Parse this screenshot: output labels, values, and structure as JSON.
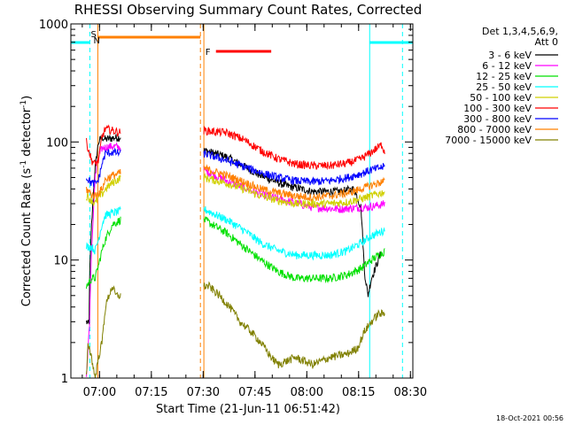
{
  "chart_data": {
    "type": "line",
    "title": "RHESSI Observing Summary Count Rates, Corrected",
    "xlabel": "Start Time (21-Jun-11 06:51:42)",
    "ylabel_main": "Corrected Count Rate (s",
    "ylabel_sup1": "-1",
    "ylabel_mid": " detector",
    "ylabel_sup2": "-1",
    "ylabel_end": ")",
    "yscale": "log",
    "ylim": [
      1,
      1000
    ],
    "xlim_minutes_after_start": [
      0,
      99
    ],
    "x_ticks": [
      {
        "label": "07:00",
        "min": 8.3
      },
      {
        "label": "07:15",
        "min": 23.3
      },
      {
        "label": "07:30",
        "min": 38.3
      },
      {
        "label": "07:45",
        "min": 53.3
      },
      {
        "label": "08:00",
        "min": 68.3
      },
      {
        "label": "08:15",
        "min": 83.3
      },
      {
        "label": "08:30",
        "min": 98.3
      }
    ],
    "y_ticks": [
      {
        "label": "1",
        "value": 1
      },
      {
        "label": "10",
        "value": 10
      },
      {
        "label": "100",
        "value": 100
      },
      {
        "label": "1000",
        "value": 1000
      }
    ],
    "legend_header": [
      "Det 1,3,4,5,6,9,",
      "Att 0"
    ],
    "legend_position": "top-right",
    "annotations": {
      "saa_marker": "S",
      "night_marker": "N",
      "flare_marker": "F",
      "saa_color": "#ff8000",
      "night_color": "#00ffff",
      "flare_color": "#ff0000"
    },
    "events_minutes": {
      "night_bars": [
        [
          0,
          5.5
        ],
        [
          86.5,
          99
        ]
      ],
      "night_dashed": [
        5.5,
        96
      ],
      "night_solid": 86.5,
      "saa_bar": [
        7.8,
        37.5
      ],
      "saa_dashed": 37.5,
      "saa_solid": [
        7.8,
        38.5
      ],
      "flare_bar": [
        42,
        58
      ]
    },
    "segments_minutes": [
      [
        4.5,
        14.5
      ],
      [
        38.5,
        91
      ]
    ],
    "series": [
      {
        "name": "3 - 6 keV",
        "color": "#000000",
        "values": [
          [
            4.5,
            3
          ],
          [
            5.3,
            2.8
          ],
          [
            5.4,
            7
          ],
          [
            6,
            20
          ],
          [
            7,
            60
          ],
          [
            8,
            100
          ],
          [
            9,
            110
          ],
          [
            10,
            105
          ],
          [
            12,
            108
          ],
          [
            14.5,
            110
          ],
          [
            38.5,
            85
          ],
          [
            45,
            75
          ],
          [
            55,
            52
          ],
          [
            62,
            43
          ],
          [
            70,
            38
          ],
          [
            78,
            38
          ],
          [
            82,
            40
          ],
          [
            84,
            28
          ],
          [
            85,
            8
          ],
          [
            86,
            5
          ],
          [
            87,
            7
          ],
          [
            89,
            10
          ],
          [
            90,
            12
          ]
        ]
      },
      {
        "name": "6 - 12 keV",
        "color": "#ff00ff",
        "values": [
          [
            4.5,
            1
          ],
          [
            5.4,
            3
          ],
          [
            6,
            12
          ],
          [
            7,
            50
          ],
          [
            8,
            75
          ],
          [
            9,
            88
          ],
          [
            10,
            90
          ],
          [
            12,
            92
          ],
          [
            14.5,
            90
          ],
          [
            38.5,
            58
          ],
          [
            45,
            47
          ],
          [
            55,
            36
          ],
          [
            62,
            32
          ],
          [
            70,
            28
          ],
          [
            78,
            27
          ],
          [
            84,
            28
          ],
          [
            86,
            28
          ],
          [
            91,
            30
          ]
        ]
      },
      {
        "name": "12 - 25 keV",
        "color": "#00e000",
        "values": [
          [
            4.5,
            6
          ],
          [
            6,
            7
          ],
          [
            7,
            7
          ],
          [
            8,
            9
          ],
          [
            9,
            12
          ],
          [
            10,
            15
          ],
          [
            12,
            20
          ],
          [
            14.5,
            22
          ],
          [
            38.5,
            22
          ],
          [
            45,
            17
          ],
          [
            50,
            13
          ],
          [
            55,
            10
          ],
          [
            60,
            8
          ],
          [
            65,
            7
          ],
          [
            70,
            7
          ],
          [
            75,
            7
          ],
          [
            80,
            7.5
          ],
          [
            84,
            8.5
          ],
          [
            87,
            10
          ],
          [
            91,
            12
          ]
        ]
      },
      {
        "name": "25 - 50 keV",
        "color": "#00ffff",
        "values": [
          [
            4.5,
            13
          ],
          [
            6,
            13
          ],
          [
            7,
            12
          ],
          [
            8,
            15
          ],
          [
            9,
            20
          ],
          [
            10,
            24
          ],
          [
            12,
            25
          ],
          [
            14.5,
            26
          ],
          [
            38.5,
            27
          ],
          [
            45,
            22
          ],
          [
            50,
            18
          ],
          [
            55,
            14
          ],
          [
            60,
            12
          ],
          [
            65,
            11
          ],
          [
            70,
            11
          ],
          [
            75,
            11
          ],
          [
            80,
            12
          ],
          [
            84,
            14
          ],
          [
            87,
            16
          ],
          [
            91,
            18
          ]
        ]
      },
      {
        "name": "50 - 100 keV",
        "color": "#d0d000",
        "values": [
          [
            4.5,
            35
          ],
          [
            6,
            32
          ],
          [
            7,
            30
          ],
          [
            8,
            34
          ],
          [
            9,
            36
          ],
          [
            10,
            40
          ],
          [
            12,
            45
          ],
          [
            14.5,
            50
          ],
          [
            38.5,
            50
          ],
          [
            45,
            45
          ],
          [
            50,
            40
          ],
          [
            55,
            35
          ],
          [
            60,
            32
          ],
          [
            65,
            30
          ],
          [
            70,
            30
          ],
          [
            75,
            30
          ],
          [
            80,
            31
          ],
          [
            84,
            33
          ],
          [
            87,
            35
          ],
          [
            91,
            38
          ]
        ]
      },
      {
        "name": "100 - 300 keV",
        "color": "#ff0000",
        "values": [
          [
            4.5,
            100
          ],
          [
            6,
            70
          ],
          [
            7,
            65
          ],
          [
            8,
            70
          ],
          [
            9,
            110
          ],
          [
            10,
            130
          ],
          [
            12,
            125
          ],
          [
            14.5,
            120
          ],
          [
            38.5,
            125
          ],
          [
            45,
            120
          ],
          [
            50,
            105
          ],
          [
            55,
            85
          ],
          [
            60,
            72
          ],
          [
            65,
            65
          ],
          [
            70,
            63
          ],
          [
            75,
            63
          ],
          [
            80,
            66
          ],
          [
            84,
            72
          ],
          [
            87,
            82
          ],
          [
            90,
            95
          ],
          [
            91,
            80
          ]
        ]
      },
      {
        "name": "300 - 800 keV",
        "color": "#0000ff",
        "values": [
          [
            4.5,
            50
          ],
          [
            6,
            45
          ],
          [
            7,
            44
          ],
          [
            8,
            48
          ],
          [
            9,
            65
          ],
          [
            10,
            80
          ],
          [
            12,
            82
          ],
          [
            14.5,
            80
          ],
          [
            38.5,
            80
          ],
          [
            45,
            70
          ],
          [
            50,
            62
          ],
          [
            55,
            55
          ],
          [
            60,
            50
          ],
          [
            65,
            47
          ],
          [
            70,
            46
          ],
          [
            75,
            47
          ],
          [
            80,
            50
          ],
          [
            84,
            54
          ],
          [
            87,
            58
          ],
          [
            91,
            62
          ]
        ]
      },
      {
        "name": "800 - 7000 keV",
        "color": "#ff8000",
        "values": [
          [
            4.5,
            40
          ],
          [
            6,
            36
          ],
          [
            7,
            35
          ],
          [
            8,
            37
          ],
          [
            9,
            40
          ],
          [
            10,
            48
          ],
          [
            12,
            52
          ],
          [
            14.5,
            55
          ],
          [
            38.5,
            60
          ],
          [
            45,
            52
          ],
          [
            50,
            46
          ],
          [
            55,
            40
          ],
          [
            60,
            37
          ],
          [
            65,
            35
          ],
          [
            70,
            34
          ],
          [
            75,
            35
          ],
          [
            80,
            37
          ],
          [
            84,
            40
          ],
          [
            87,
            43
          ],
          [
            91,
            47
          ]
        ]
      },
      {
        "name": "7000 - 15000 keV",
        "color": "#808000",
        "values": [
          [
            4.5,
            1
          ],
          [
            5,
            2
          ],
          [
            6,
            1.5
          ],
          [
            7,
            1
          ],
          [
            8,
            1.5
          ],
          [
            9,
            2
          ],
          [
            10,
            4
          ],
          [
            11,
            5
          ],
          [
            12,
            6
          ],
          [
            13,
            5
          ],
          [
            14.5,
            5
          ],
          [
            38.5,
            6
          ],
          [
            40,
            6
          ],
          [
            43,
            5
          ],
          [
            46,
            4
          ],
          [
            49,
            3
          ],
          [
            52,
            2.5
          ],
          [
            55,
            2
          ],
          [
            58,
            1.5
          ],
          [
            60,
            1.3
          ],
          [
            65,
            1.5
          ],
          [
            70,
            1.3
          ],
          [
            75,
            1.5
          ],
          [
            80,
            1.6
          ],
          [
            83,
            1.8
          ],
          [
            85,
            2.5
          ],
          [
            87,
            3
          ],
          [
            89,
            3.5
          ],
          [
            91,
            3.5
          ]
        ]
      }
    ]
  },
  "footer": {
    "timestamp": "18-Oct-2021 00:56"
  }
}
